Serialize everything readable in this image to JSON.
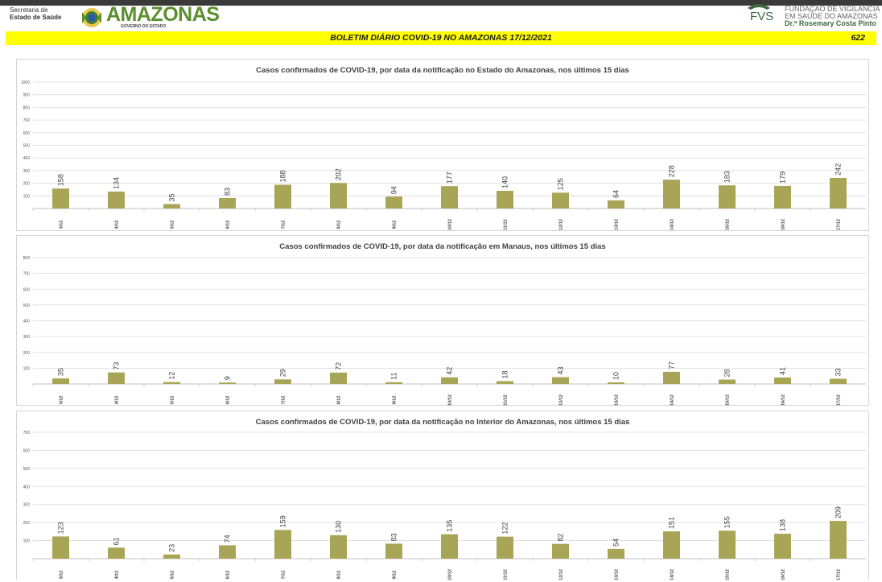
{
  "header": {
    "secretaria_line1": "Secretaria de",
    "secretaria_line2": "Estado de Saúde",
    "state_name": "AMAZONAS",
    "state_sub": "GOVERNO DO ESTADO",
    "fvs_logo": "FVS",
    "fvs_line1": "FUNDAÇÃO DE VIGILÂNCIA",
    "fvs_line2": "EM SAÚDE DO AMAZONAS",
    "fvs_line3": "Dr.ª Rosemary Costa Pinto",
    "bulletin_title": "BOLETIM DIÁRIO COVID-19 NO AMAZONAS 17/12/2021",
    "bulletin_number": "622"
  },
  "colors": {
    "bar": "#a9a556",
    "grid": "#d9d9d9",
    "header_bar": "#ffff00",
    "brand_green": "#5a8f2e"
  },
  "chart_data": [
    {
      "type": "bar",
      "title": "Casos confirmados de COVID-19, por data da notificação no Estado do Amazonas, nos últimos 15 dias",
      "categories": [
        "3/12",
        "4/12",
        "5/12",
        "6/12",
        "7/12",
        "8/12",
        "9/12",
        "10/12",
        "11/12",
        "12/12",
        "13/12",
        "14/12",
        "15/12",
        "16/12",
        "17/12"
      ],
      "values": [
        158,
        134,
        35,
        83,
        188,
        202,
        94,
        177,
        140,
        125,
        64,
        228,
        183,
        179,
        242
      ],
      "ylim": [
        0,
        1000
      ],
      "yticks": [
        100,
        200,
        300,
        400,
        500,
        600,
        700,
        800,
        900,
        1000
      ],
      "grid": true
    },
    {
      "type": "bar",
      "title": "Casos confirmados de COVID-19, por data da notificação em Manaus, nos últimos 15 dias",
      "categories": [
        "3/12",
        "4/12",
        "5/12",
        "6/12",
        "7/12",
        "8/12",
        "9/12",
        "10/12",
        "11/12",
        "12/12",
        "13/12",
        "14/12",
        "15/12",
        "16/12",
        "17/12"
      ],
      "values": [
        35,
        73,
        12,
        9,
        29,
        72,
        11,
        42,
        18,
        43,
        10,
        77,
        28,
        41,
        33
      ],
      "ylim": [
        0,
        800
      ],
      "yticks": [
        100,
        200,
        300,
        400,
        500,
        600,
        700,
        800
      ],
      "grid": true
    },
    {
      "type": "bar",
      "title": "Casos confirmados de COVID-19, por data da notificação no  Interior do Amazonas, nos últimos 15 dias",
      "categories": [
        "3/12",
        "4/12",
        "5/12",
        "6/12",
        "7/12",
        "8/12",
        "9/12",
        "10/12",
        "11/12",
        "12/12",
        "13/12",
        "14/12",
        "15/12",
        "16/12",
        "17/12"
      ],
      "values": [
        123,
        61,
        23,
        74,
        159,
        130,
        83,
        135,
        122,
        82,
        54,
        151,
        155,
        138,
        209
      ],
      "ylim": [
        0,
        700
      ],
      "yticks": [
        100,
        200,
        300,
        400,
        500,
        600,
        700
      ],
      "grid": true
    }
  ]
}
